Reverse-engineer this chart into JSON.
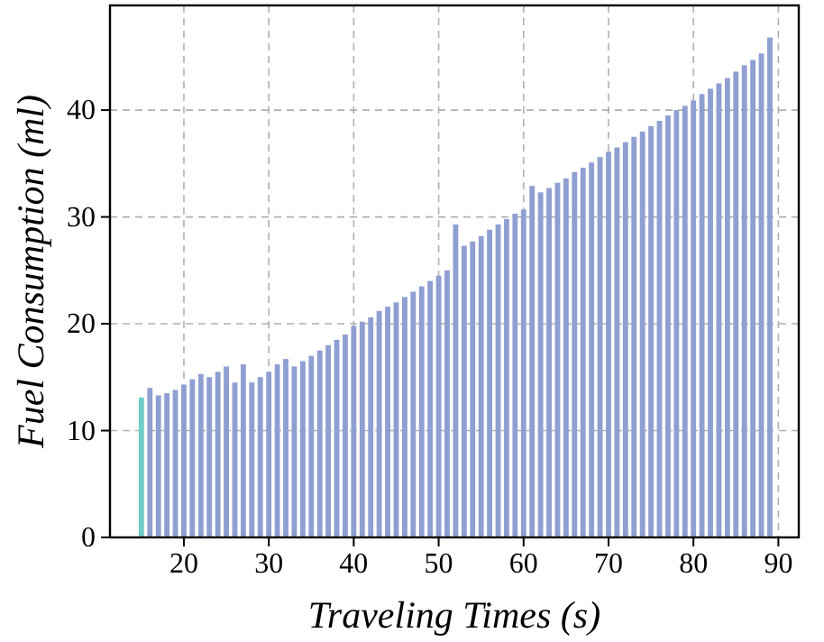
{
  "chart_data": {
    "type": "bar",
    "xlabel": "Traveling Times (s)",
    "ylabel": "Fuel Consumption (ml)",
    "x": [
      15,
      16,
      17,
      18,
      19,
      20,
      21,
      22,
      23,
      24,
      25,
      26,
      27,
      28,
      29,
      30,
      31,
      32,
      33,
      34,
      35,
      36,
      37,
      38,
      39,
      40,
      41,
      42,
      43,
      44,
      45,
      46,
      47,
      48,
      49,
      50,
      51,
      52,
      53,
      54,
      55,
      56,
      57,
      58,
      59,
      60,
      61,
      62,
      63,
      64,
      65,
      66,
      67,
      68,
      69,
      70,
      71,
      72,
      73,
      74,
      75,
      76,
      77,
      78,
      79,
      80,
      81,
      82,
      83,
      84,
      85,
      86,
      87,
      88,
      89
    ],
    "values": [
      13.1,
      14,
      13.3,
      13.5,
      13.8,
      14.3,
      14.8,
      15.3,
      15,
      15.5,
      16,
      14.5,
      16.2,
      14.5,
      15,
      15.5,
      16.2,
      16.7,
      16,
      16.5,
      17,
      17.5,
      18,
      18.5,
      19,
      19.8,
      20.2,
      20.6,
      21.2,
      21.6,
      22,
      22.5,
      23,
      23.5,
      24,
      24.5,
      25,
      29.3,
      27.3,
      27.7,
      28.2,
      28.8,
      29.3,
      29.8,
      30.3,
      30.7,
      32.9,
      32.3,
      32.7,
      33.2,
      33.6,
      34.2,
      34.6,
      35.1,
      35.6,
      36.1,
      36.5,
      37,
      37.5,
      38,
      38.5,
      39,
      39.5,
      40,
      40.4,
      40.9,
      41.5,
      42,
      42.5,
      43,
      43.6,
      44.2,
      44.7,
      45.3,
      46.8
    ],
    "colors": [
      "#6fcdc8",
      "#8f9fd2",
      "#8f9fd2",
      "#8f9fd2",
      "#8f9fd2",
      "#8f9fd2",
      "#8f9fd2",
      "#8f9fd2",
      "#8f9fd2",
      "#8f9fd2",
      "#8f9fd2",
      "#8f9fd2",
      "#8f9fd2",
      "#8f9fd2",
      "#8f9fd2",
      "#8f9fd2",
      "#8f9fd2",
      "#8f9fd2",
      "#8f9fd2",
      "#8f9fd2",
      "#8f9fd2",
      "#8f9fd2",
      "#8f9fd2",
      "#8f9fd2",
      "#8f9fd2",
      "#8f9fd2",
      "#8f9fd2",
      "#8f9fd2",
      "#8f9fd2",
      "#8f9fd2",
      "#8f9fd2",
      "#8f9fd2",
      "#8f9fd2",
      "#8f9fd2",
      "#8f9fd2",
      "#8f9fd2",
      "#8f9fd2",
      "#8f9fd2",
      "#8f9fd2",
      "#8f9fd2",
      "#8f9fd2",
      "#8f9fd2",
      "#8f9fd2",
      "#8f9fd2",
      "#8f9fd2",
      "#8f9fd2",
      "#8f9fd2",
      "#8f9fd2",
      "#8f9fd2",
      "#8f9fd2",
      "#8f9fd2",
      "#8f9fd2",
      "#8f9fd2",
      "#8f9fd2",
      "#8f9fd2",
      "#8f9fd2",
      "#8f9fd2",
      "#8f9fd2",
      "#8f9fd2",
      "#8f9fd2",
      "#8f9fd2",
      "#8f9fd2",
      "#8f9fd2",
      "#8f9fd2",
      "#8f9fd2",
      "#8f9fd2",
      "#8f9fd2",
      "#8f9fd2",
      "#8f9fd2",
      "#8f9fd2",
      "#8f9fd2",
      "#8f9fd2",
      "#8f9fd2",
      "#8f9fd2",
      "#8f9fd2"
    ],
    "xlim": [
      11.3,
      92.4
    ],
    "xticks": [
      20,
      30,
      40,
      50,
      60,
      70,
      80,
      90
    ],
    "ylim": [
      0,
      49.8
    ],
    "yticks": [
      0,
      10,
      20,
      30,
      40
    ],
    "grid": true
  }
}
